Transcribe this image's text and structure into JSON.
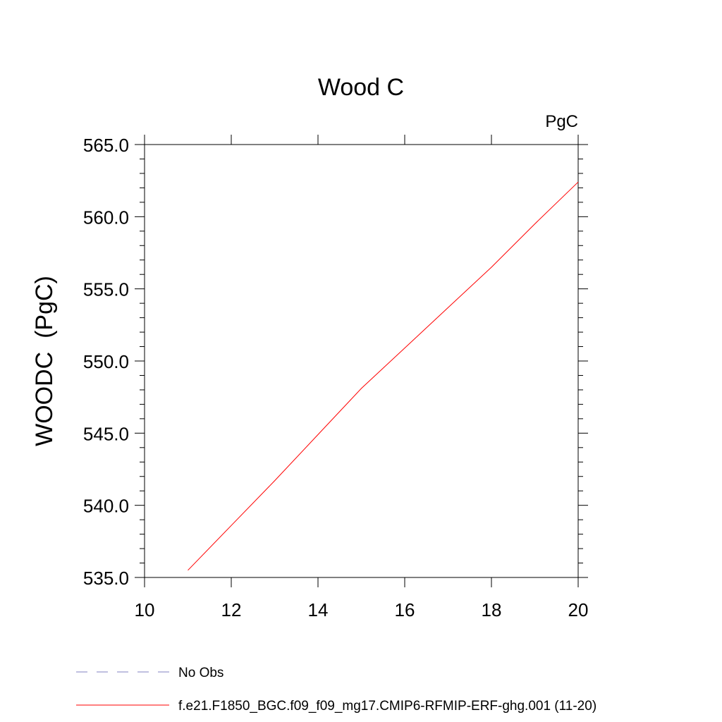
{
  "chart_data": {
    "type": "line",
    "title": "Wood C",
    "units_label": "PgC",
    "ylabel": "WOODC  (PgC)",
    "xlabel": "",
    "xlim": [
      10,
      20
    ],
    "ylim": [
      535,
      565
    ],
    "x_ticks": [
      10,
      12,
      14,
      16,
      18,
      20
    ],
    "x_tick_labels": [
      "10",
      "12",
      "14",
      "16",
      "18",
      "20"
    ],
    "y_ticks": [
      535,
      540,
      545,
      550,
      555,
      560,
      565
    ],
    "y_tick_labels": [
      "535.0",
      "540.0",
      "545.0",
      "550.0",
      "555.0",
      "560.0",
      "565.0"
    ],
    "grid": false,
    "legend_position": "bottom",
    "legend": [
      {
        "label": "No Obs",
        "style": "dashed",
        "color": "#8080c0"
      },
      {
        "label": "f.e21.F1850_BGC.f09_f09_mg17.CMIP6-RFMIP-ERF-ghg.001 (11-20)",
        "style": "solid",
        "color": "#ff0000"
      }
    ],
    "series": [
      {
        "color": "#ff0000",
        "x": [
          11,
          12,
          13,
          14,
          15,
          16,
          17,
          18,
          19,
          20
        ],
        "values": [
          535.5,
          538.6,
          541.7,
          544.9,
          548.1,
          550.9,
          553.7,
          556.5,
          559.5,
          562.4
        ]
      }
    ]
  }
}
